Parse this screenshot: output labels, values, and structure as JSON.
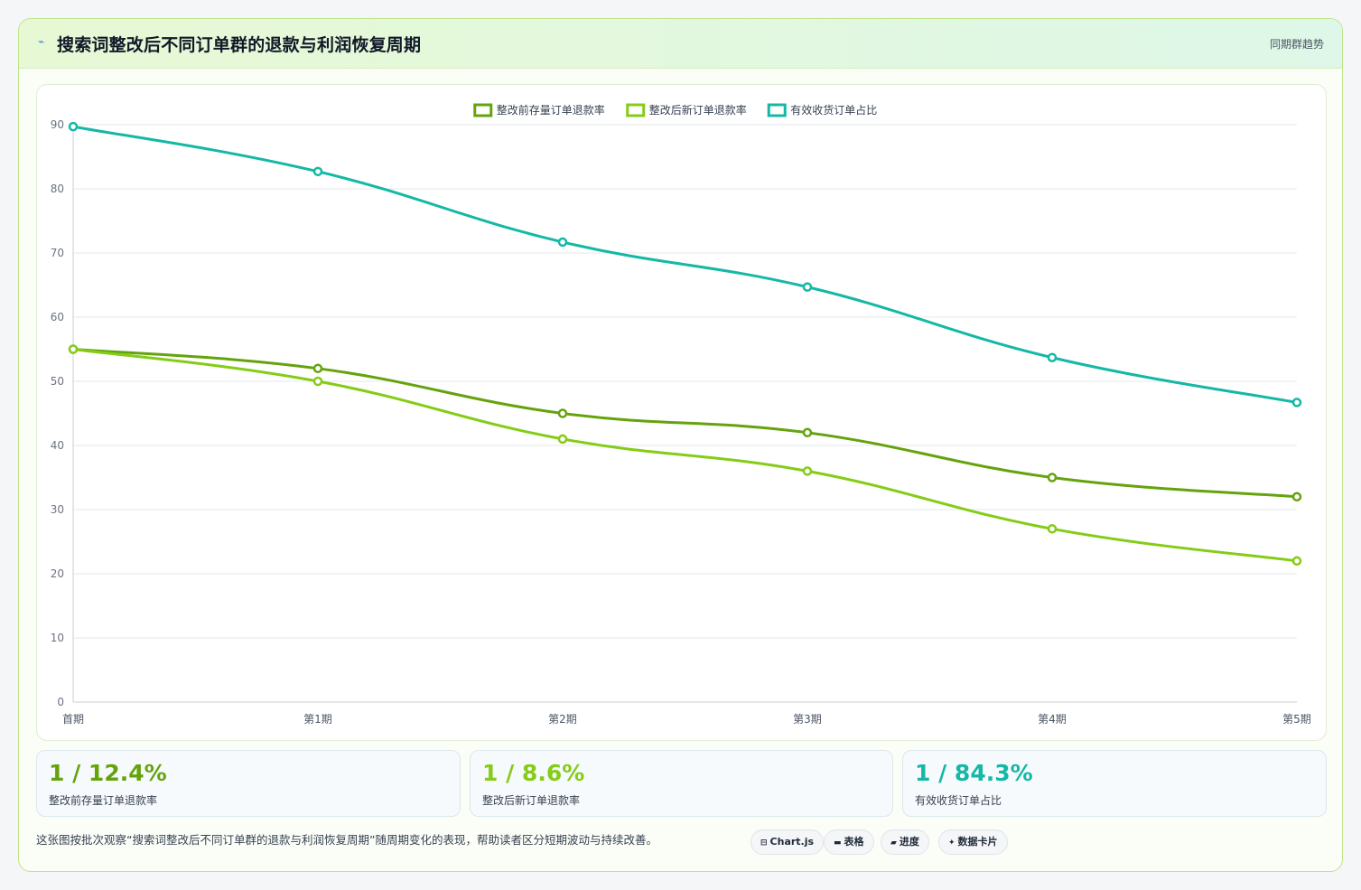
{
  "header": {
    "icon": "sparkline-icon",
    "title": "搜索词整改后不同订单群的退款与利润恢复周期",
    "subtitle": "同期群趋势"
  },
  "chart_data": {
    "type": "line",
    "categories": [
      "首期",
      "第1期",
      "第2期",
      "第3期",
      "第4期",
      "第5期"
    ],
    "series": [
      {
        "name": "整改前存量订单退款率",
        "color": "#65a30d",
        "values": [
          55,
          52,
          45,
          42,
          35,
          32
        ]
      },
      {
        "name": "整改后新订单退款率",
        "color": "#84cc16",
        "values": [
          55,
          50,
          41,
          36,
          27,
          22
        ]
      },
      {
        "name": "有效收货订单占比",
        "color": "#14b8a6",
        "values": [
          89.7,
          82.7,
          71.7,
          64.7,
          53.7,
          46.7
        ]
      }
    ],
    "yticks": [
      0,
      10,
      20,
      30,
      40,
      50,
      60,
      70,
      80,
      90
    ],
    "ylim": [
      0,
      90
    ],
    "grid": true,
    "legend": "top-center"
  },
  "kpis": [
    {
      "value": "1 / 12.4%",
      "label": "整改前存量订单退款率",
      "color": "#65a30d"
    },
    {
      "value": "1 / 8.6%",
      "label": "整改后新订单退款率",
      "color": "#84cc16"
    },
    {
      "value": "1 / 84.3%",
      "label": "有效收货订单占比",
      "color": "#14b8a6"
    }
  ],
  "footer": {
    "note": "这张图按批次观察“搜索词整改后不同订单群的退款与利润恢复周期”随周期变化的表现，帮助读者区分短期波动与持续改善。",
    "tags": [
      {
        "icon": "chart-icon",
        "glyph": "⊟",
        "label": "Chart.js"
      },
      {
        "icon": "table-icon",
        "glyph": "▬",
        "label": "表格"
      },
      {
        "icon": "progress-icon",
        "glyph": "▰",
        "label": "进度"
      },
      {
        "icon": "data-card-icon",
        "glyph": "✦",
        "label": "数据卡片"
      }
    ]
  }
}
